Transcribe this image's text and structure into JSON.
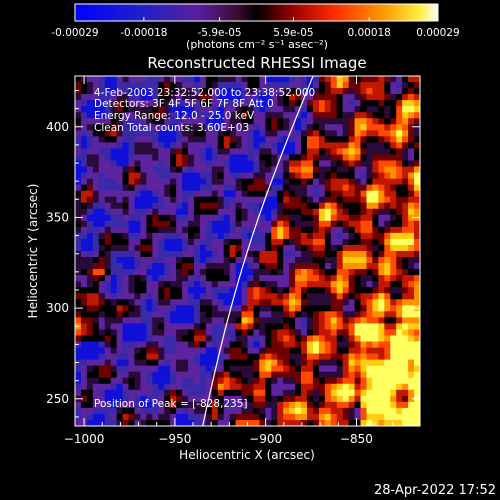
{
  "colorbar": {
    "ticks": [
      "-0.00029",
      "-0.00018",
      "-5.9e-05",
      "5.9e-05",
      "0.00018",
      "0.00029"
    ],
    "units": "(photons cm⁻² s⁻¹ asec⁻²)"
  },
  "chart_data": {
    "type": "heatmap",
    "title": "Reconstructed RHESSI Image",
    "xlabel": "Heliocentric X (arcsec)",
    "ylabel": "Heliocentric Y (arcsec)",
    "xlim": [
      -1005,
      -815
    ],
    "ylim": [
      235,
      428
    ],
    "zlim": [
      -0.00029,
      0.00029
    ],
    "x_ticks": [
      -1000,
      -950,
      -900,
      -850
    ],
    "y_ticks": [
      250,
      300,
      350,
      400
    ],
    "x_tick_labels": [
      "−1000",
      "−950",
      "−900",
      "−850"
    ],
    "y_tick_labels": [
      "250",
      "300",
      "350",
      "400"
    ],
    "colormap": [
      "#0000ff",
      "#1a1acc",
      "#301080",
      "#4a1a70",
      "#6a1f9a",
      "#000000",
      "#7a0000",
      "#d02000",
      "#ff6000",
      "#ffb000",
      "#ffff00",
      "#ffffff"
    ],
    "annotations": [
      "4-Feb-2003 23:32:52.000 to 23:38:52.000",
      "Detectors: 3F 4F 5F 6F 7F 8F  Att 0",
      "Energy Range: 12.0 - 25.0 keV",
      "Clean     Total counts: 3.60E+03"
    ],
    "peak_text": "Position of Peak = [-828,235]",
    "peak": [
      -828,
      235
    ]
  },
  "footer": {
    "timestamp": "28-Apr-2022 17:52"
  }
}
